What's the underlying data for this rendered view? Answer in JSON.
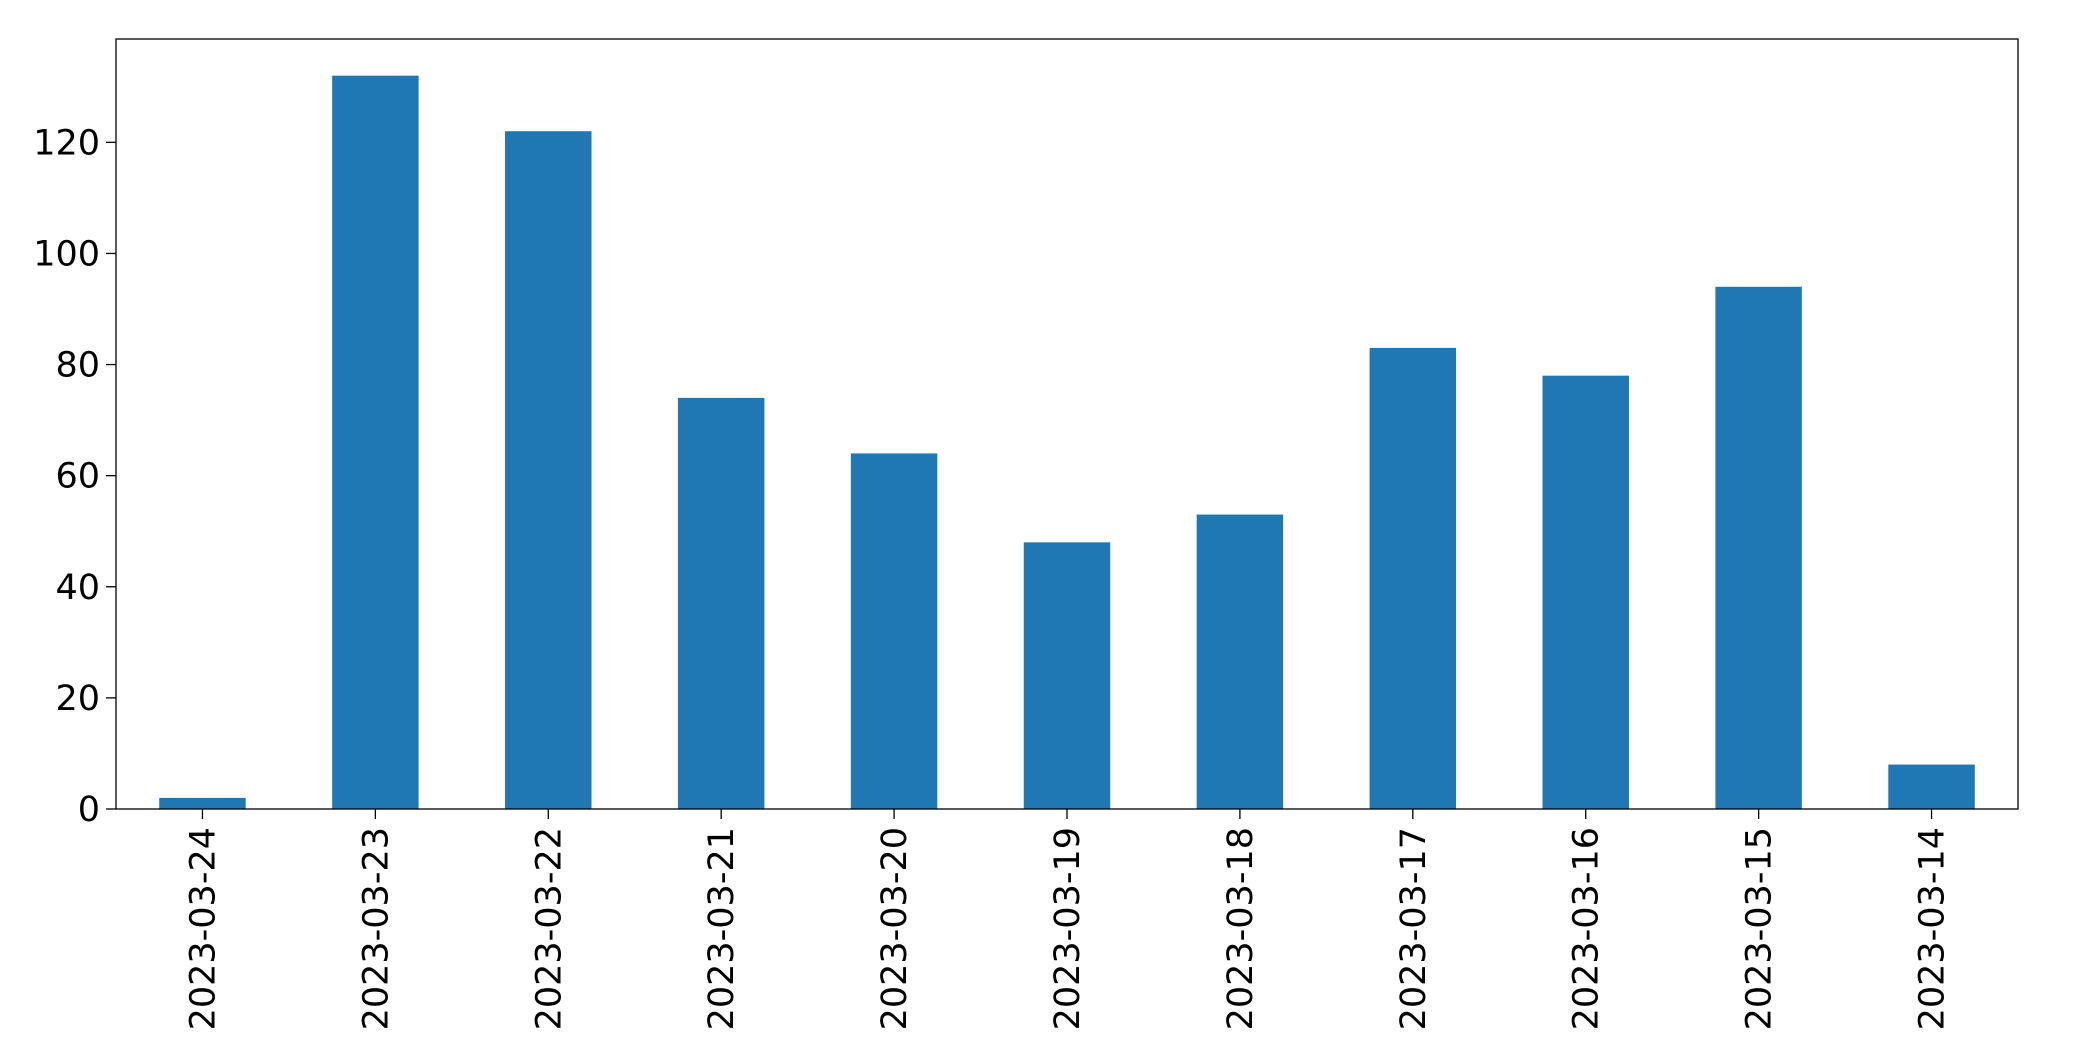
{
  "chart_data": {
    "type": "bar",
    "title": "",
    "xlabel": "",
    "ylabel": "",
    "categories": [
      "2023-03-24",
      "2023-03-23",
      "2023-03-22",
      "2023-03-21",
      "2023-03-20",
      "2023-03-19",
      "2023-03-18",
      "2023-03-17",
      "2023-03-16",
      "2023-03-15",
      "2023-03-14"
    ],
    "values": [
      2,
      132,
      122,
      74,
      64,
      48,
      53,
      83,
      78,
      94,
      8
    ],
    "ylim": [
      0,
      138.6
    ],
    "yticks": [
      0,
      20,
      40,
      60,
      80,
      100,
      120
    ],
    "grid": false,
    "legend": "none",
    "colors": {
      "bar": "#1f77b4",
      "axis": "#000000",
      "text": "#000000"
    }
  }
}
